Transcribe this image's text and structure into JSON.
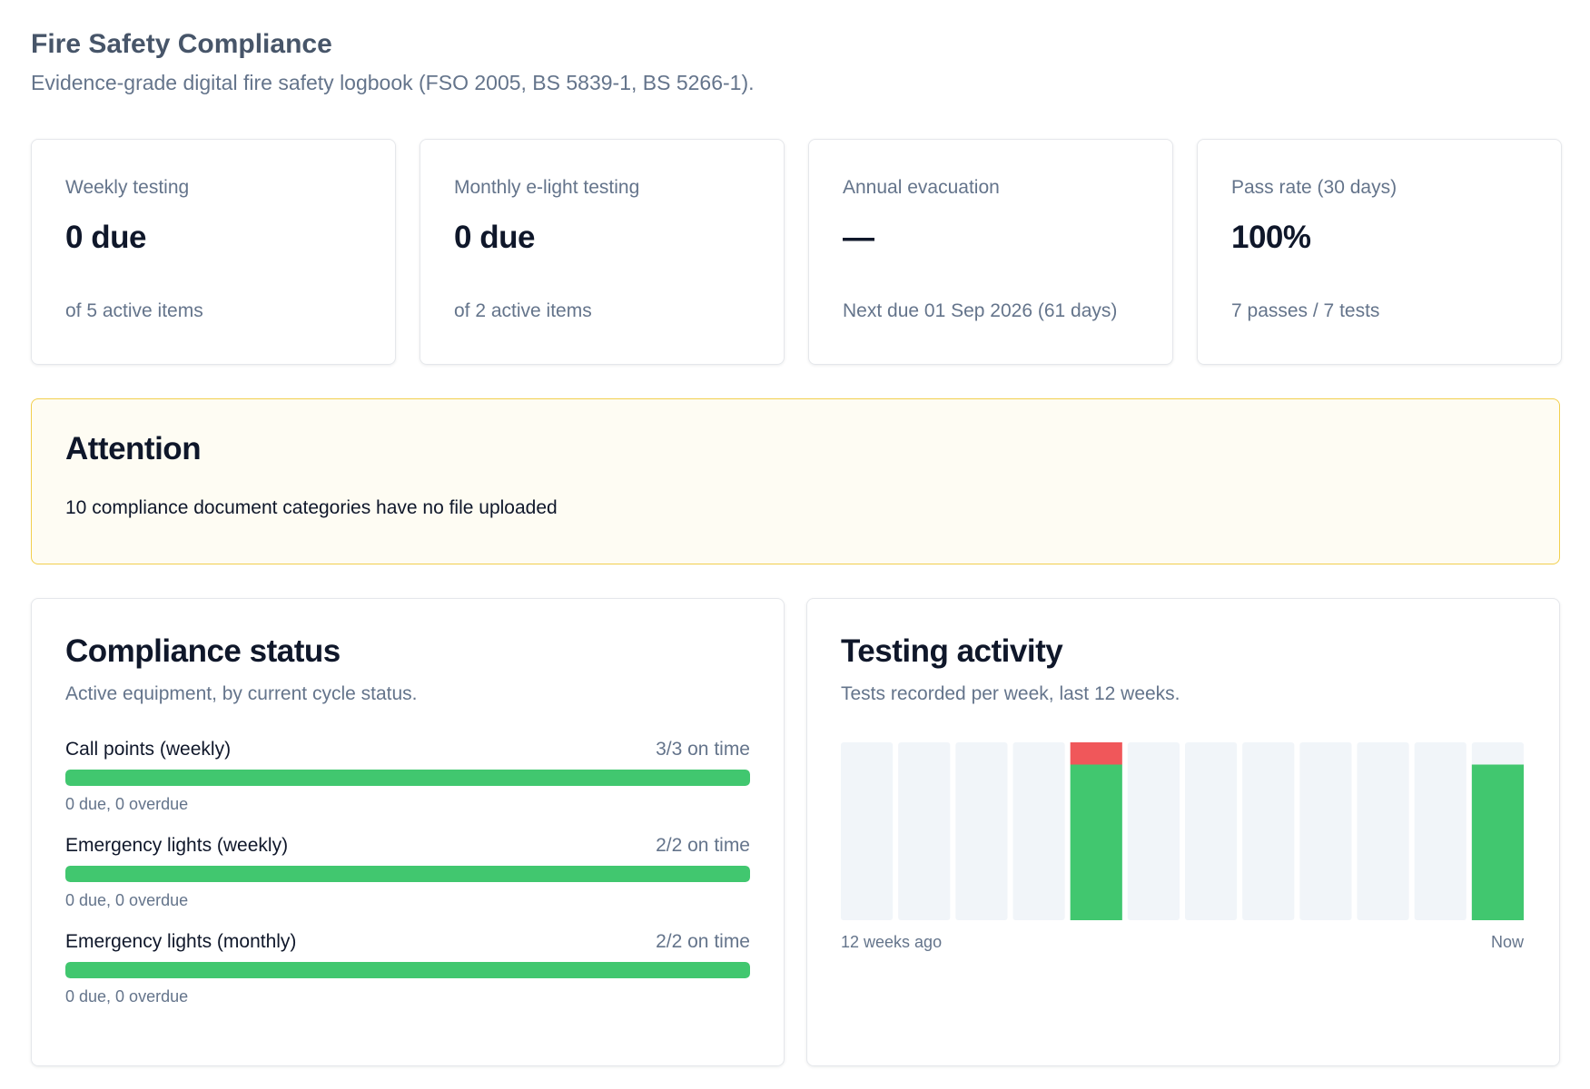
{
  "header": {
    "title": "Fire Safety Compliance",
    "subtitle": "Evidence-grade digital fire safety logbook (FSO 2005, BS 5839-1, BS 5266-1)."
  },
  "stats": [
    {
      "label": "Weekly testing",
      "value": "0 due",
      "note": "of 5 active items"
    },
    {
      "label": "Monthly e-light testing",
      "value": "0 due",
      "note": "of 2 active items"
    },
    {
      "label": "Annual evacuation",
      "value": "—",
      "note": "Next due 01 Sep 2026 (61 days)"
    },
    {
      "label": "Pass rate (30 days)",
      "value": "100%",
      "note": "7 passes / 7 tests"
    }
  ],
  "attention": {
    "title": "Attention",
    "message": "10 compliance document categories have no file uploaded"
  },
  "compliance": {
    "title": "Compliance status",
    "subtitle": "Active equipment, by current cycle status.",
    "items": [
      {
        "name": "Call points (weekly)",
        "on_time": "3/3 on time",
        "progress": 1.0,
        "meta": "0 due, 0 overdue"
      },
      {
        "name": "Emergency lights (weekly)",
        "on_time": "2/2 on time",
        "progress": 1.0,
        "meta": "0 due, 0 overdue"
      },
      {
        "name": "Emergency lights (monthly)",
        "on_time": "2/2 on time",
        "progress": 1.0,
        "meta": "0 due, 0 overdue"
      }
    ]
  },
  "activity": {
    "title": "Testing activity",
    "subtitle": "Tests recorded per week, last 12 weeks.",
    "x_start_label": "12 weeks ago",
    "x_end_label": "Now"
  },
  "colors": {
    "pass": "#41c76f",
    "fail": "#f0575a",
    "empty": "#f1f5f9"
  },
  "chart_data": {
    "type": "bar",
    "stacked": true,
    "categories": [
      "12 weeks ago",
      "",
      "",
      "",
      "",
      "",
      "",
      "",
      "",
      "",
      "",
      "Now"
    ],
    "series": [
      {
        "values": [
          0,
          0,
          0,
          0,
          5.6,
          0,
          0,
          0,
          0,
          0,
          0,
          5.6
        ]
      },
      {
        "values": [
          0,
          0,
          0,
          0,
          0.8,
          0,
          0,
          0,
          0,
          0,
          0,
          0
        ]
      }
    ],
    "ylim": [
      0,
      6.4
    ],
    "grid": false
  }
}
